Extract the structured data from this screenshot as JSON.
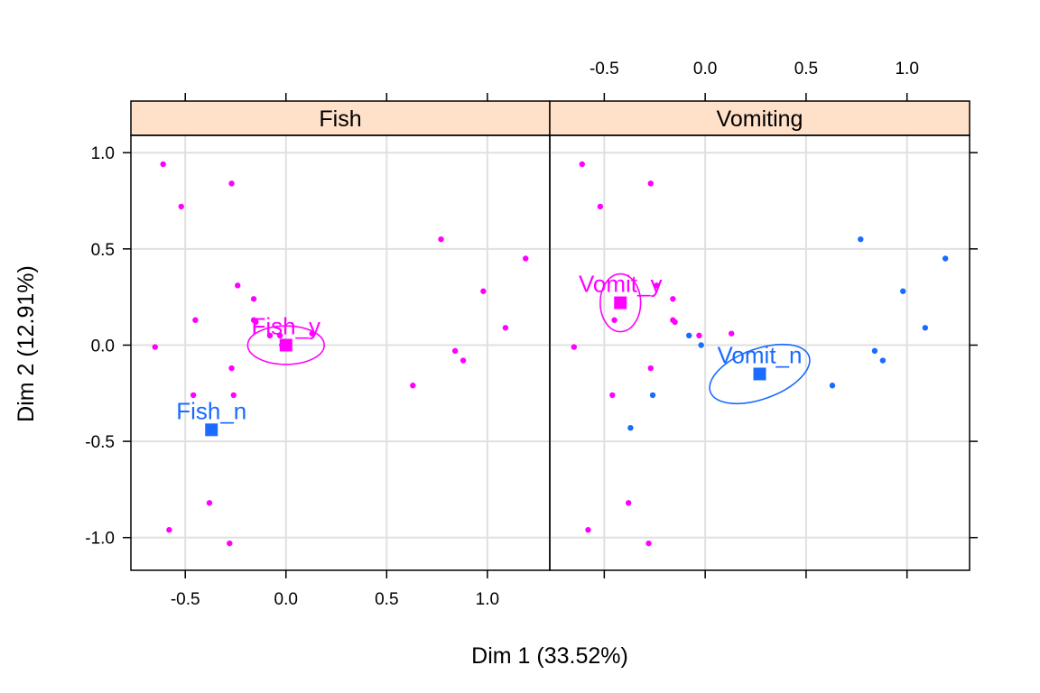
{
  "chart_data": {
    "type": "scatter",
    "xlabel": "Dim 1 (33.52%)",
    "ylabel": "Dim 2 (12.91%)",
    "xlim": [
      -0.77,
      1.31
    ],
    "ylim": [
      -1.17,
      1.09
    ],
    "xticks": [
      -0.5,
      0.0,
      0.5,
      1.0
    ],
    "yticks": [
      -1.0,
      -0.5,
      0.0,
      0.5,
      1.0
    ],
    "x_tick_labels": [
      "-0.5",
      "0.0",
      "0.5",
      "1.0"
    ],
    "y_tick_labels": [
      "-1.0",
      "-0.5",
      "0.0",
      "0.5",
      "1.0"
    ],
    "grid": true,
    "colors": {
      "yes": "#ff00ff",
      "no": "#1a6bff",
      "strip_bg": "#ffe0c8",
      "grid": "#e0e0e0"
    },
    "points": [
      {
        "x": -0.61,
        "y": 0.94,
        "color": "yes"
      },
      {
        "x": -0.52,
        "y": 0.72,
        "color": "yes"
      },
      {
        "x": -0.27,
        "y": 0.84,
        "color": "yes"
      },
      {
        "x": -0.65,
        "y": -0.01,
        "color": "yes"
      },
      {
        "x": -0.45,
        "y": 0.13,
        "color": "yes"
      },
      {
        "x": -0.24,
        "y": 0.31,
        "color": "yes"
      },
      {
        "x": -0.16,
        "y": 0.24,
        "color": "yes"
      },
      {
        "x": -0.16,
        "y": 0.13,
        "color": "yes"
      },
      {
        "x": -0.15,
        "y": 0.12,
        "color": "yes"
      },
      {
        "x": -0.27,
        "y": -0.12,
        "color": "yes"
      },
      {
        "x": -0.46,
        "y": -0.26,
        "color": "yes"
      },
      {
        "x": -0.03,
        "y": 0.05,
        "color": "yes"
      },
      {
        "x": 0.13,
        "y": 0.06,
        "color": "yes"
      },
      {
        "x": -0.58,
        "y": -0.96,
        "color": "yes"
      },
      {
        "x": -0.38,
        "y": -0.82,
        "color": "yes"
      },
      {
        "x": -0.28,
        "y": -1.03,
        "color": "yes"
      },
      {
        "x": 0.77,
        "y": 0.55,
        "color": "no"
      },
      {
        "x": 1.19,
        "y": 0.45,
        "color": "no"
      },
      {
        "x": 0.98,
        "y": 0.28,
        "color": "no"
      },
      {
        "x": 1.09,
        "y": 0.09,
        "color": "no"
      },
      {
        "x": 0.84,
        "y": -0.03,
        "color": "no"
      },
      {
        "x": 0.88,
        "y": -0.08,
        "color": "no"
      },
      {
        "x": 0.63,
        "y": -0.21,
        "color": "no"
      },
      {
        "x": -0.08,
        "y": 0.05,
        "color": "no"
      },
      {
        "x": -0.02,
        "y": 0.0,
        "color": "no"
      },
      {
        "x": -0.26,
        "y": -0.26,
        "color": "no"
      },
      {
        "x": -0.37,
        "y": -0.43,
        "color": "no"
      }
    ],
    "panels": [
      {
        "strip": "Fish",
        "groups": [
          {
            "label": "Fish_y",
            "x": 0.0,
            "y": 0.0,
            "color": "yes",
            "ellipse": {
              "rx": 0.19,
              "ry": 0.1,
              "angle": 0
            }
          },
          {
            "label": "Fish_n",
            "x": -0.37,
            "y": -0.44,
            "color": "no",
            "ellipse": null
          }
        ]
      },
      {
        "strip": "Vomiting",
        "groups": [
          {
            "label": "Vomit_y",
            "x": -0.42,
            "y": 0.22,
            "color": "yes",
            "ellipse": {
              "rx": 0.1,
              "ry": 0.15,
              "angle": 0
            }
          },
          {
            "label": "Vomit_n",
            "x": 0.27,
            "y": -0.15,
            "color": "no",
            "ellipse": {
              "rx": 0.26,
              "ry": 0.13,
              "angle": -20
            }
          }
        ]
      }
    ]
  }
}
